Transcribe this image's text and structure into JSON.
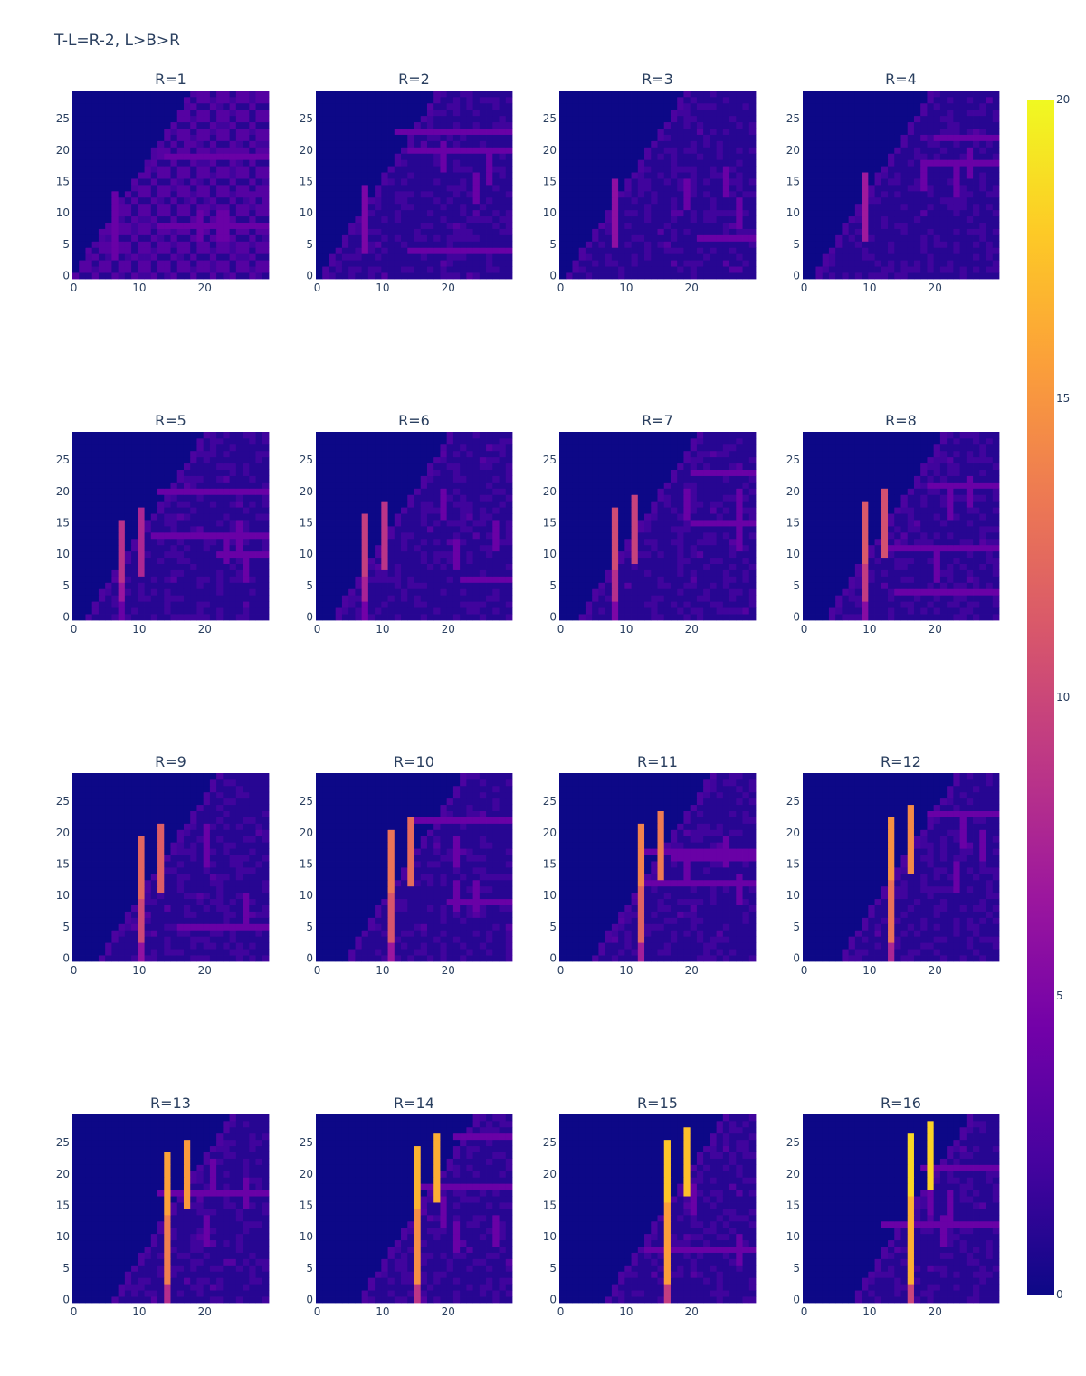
{
  "chart_data": {
    "type": "heatmap",
    "title": "T-L=R-2, L>B>R",
    "grid": false,
    "panels": [
      {
        "title": "R=1",
        "r": 1
      },
      {
        "title": "R=2",
        "r": 2
      },
      {
        "title": "R=3",
        "r": 3
      },
      {
        "title": "R=4",
        "r": 4
      },
      {
        "title": "R=5",
        "r": 5
      },
      {
        "title": "R=6",
        "r": 6
      },
      {
        "title": "R=7",
        "r": 7
      },
      {
        "title": "R=8",
        "r": 8
      },
      {
        "title": "R=9",
        "r": 9
      },
      {
        "title": "R=10",
        "r": 10
      },
      {
        "title": "R=11",
        "r": 11
      },
      {
        "title": "R=12",
        "r": 12
      },
      {
        "title": "R=13",
        "r": 13
      },
      {
        "title": "R=14",
        "r": 14
      },
      {
        "title": "R=15",
        "r": 15
      },
      {
        "title": "R=16",
        "r": 16
      }
    ],
    "xlim": [
      0,
      29
    ],
    "ylim": [
      0,
      29
    ],
    "x_ticks": [
      "0",
      "10",
      "20"
    ],
    "y_ticks": [
      "0",
      "5",
      "10",
      "15",
      "20",
      "25"
    ],
    "colorscale": "plasma",
    "colorscale_colors": [
      "#0d0887",
      "#46039f",
      "#7201a8",
      "#9c179e",
      "#bd3786",
      "#d8576b",
      "#ed7953",
      "#fb9f3a",
      "#fdca26",
      "#f0f921"
    ],
    "zlim": [
      0,
      20
    ],
    "colorbar_ticks": [
      "0",
      "5",
      "10",
      "15",
      "20"
    ]
  }
}
